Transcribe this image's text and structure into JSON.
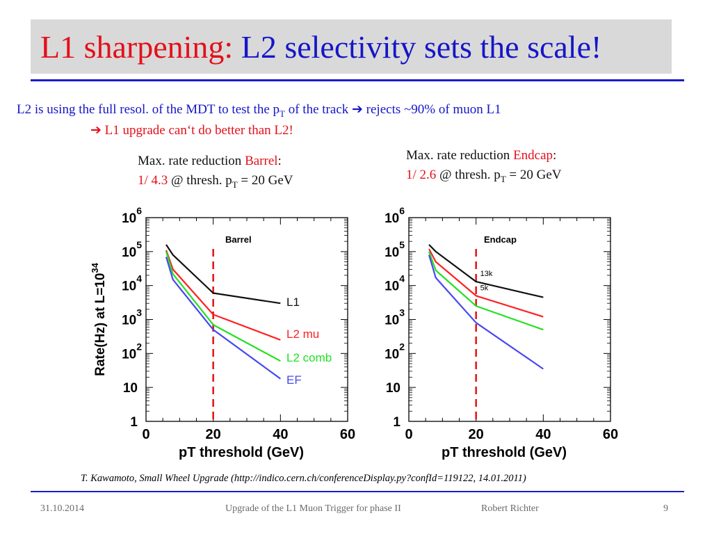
{
  "title": {
    "part1": "L1 sharpening: ",
    "part2": "L2 selectivity sets the scale!"
  },
  "body": {
    "line1_a": "L2 is using the full resol. of the MDT to test the p",
    "line1_sub": "T",
    "line1_b": " of the track ",
    "line1_arrow": "➔",
    "line1_c": " rejects ~90% of muon L1",
    "line2_arrow": "➔",
    "line2_text": " L1 upgrade can‘t do better than L2!"
  },
  "captions": {
    "barrel": {
      "prefix": "Max. rate reduction ",
      "region": "Barrel",
      "colon": ":",
      "ratio": "1/ 4.3",
      "rest_a": " @ thresh. p",
      "sub": "T",
      "rest_b": " = 20 GeV"
    },
    "endcap": {
      "prefix": "Max. rate reduction ",
      "region": "Endcap",
      "colon": ":",
      "ratio": "1/ 2.6",
      "rest_a": " @  thresh.  p",
      "sub": "T",
      "rest_b": " = 20 GeV"
    }
  },
  "chart_data": [
    {
      "type": "line",
      "panel_label": "Barrel",
      "xlabel": "pT threshold (GeV)",
      "ylabel": "Rate(Hz) at L=10^34",
      "xlim": [
        0,
        60
      ],
      "ylim": [
        1,
        1000000
      ],
      "yscale": "log",
      "x_ticks": [
        "0",
        "20",
        "40",
        "60"
      ],
      "y_ticks": [
        "1",
        "10",
        "10²",
        "10³",
        "10⁴",
        "10⁵",
        "10⁶"
      ],
      "threshold_line_x": 20,
      "series": [
        {
          "name": "L1",
          "color": "#111111",
          "x": [
            6,
            8,
            20,
            40
          ],
          "y": [
            160000,
            80000,
            6000,
            3000
          ]
        },
        {
          "name": "L2 mu",
          "color": "#ff2020",
          "x": [
            6,
            8,
            20,
            40
          ],
          "y": [
            110000,
            30000,
            1400,
            250
          ]
        },
        {
          "name": "L2 comb",
          "color": "#22e022",
          "x": [
            6,
            8,
            20,
            40
          ],
          "y": [
            100000,
            22000,
            700,
            60
          ]
        },
        {
          "name": "EF",
          "color": "#4848ee",
          "x": [
            6,
            8,
            20,
            40
          ],
          "y": [
            70000,
            15000,
            500,
            18
          ]
        }
      ]
    },
    {
      "type": "line",
      "panel_label": "Endcap",
      "xlabel": "pT threshold (GeV)",
      "ylabel": "",
      "xlim": [
        0,
        60
      ],
      "ylim": [
        1,
        1000000
      ],
      "yscale": "log",
      "x_ticks": [
        "0",
        "20",
        "40",
        "60"
      ],
      "y_ticks": [
        "1",
        "10",
        "10²",
        "10³",
        "10⁴",
        "10⁵",
        "10⁶"
      ],
      "threshold_line_x": 20,
      "annotations": [
        "13k",
        "5k"
      ],
      "series": [
        {
          "name": "L1",
          "color": "#111111",
          "x": [
            6,
            8,
            20,
            40
          ],
          "y": [
            160000,
            100000,
            13000,
            4500
          ]
        },
        {
          "name": "L2 mu",
          "color": "#ff2020",
          "x": [
            6,
            8,
            20,
            40
          ],
          "y": [
            120000,
            50000,
            5000,
            1200
          ]
        },
        {
          "name": "L2 comb",
          "color": "#22e022",
          "x": [
            6,
            8,
            20,
            40
          ],
          "y": [
            100000,
            28000,
            2500,
            500
          ]
        },
        {
          "name": "EF",
          "color": "#4848ee",
          "x": [
            6,
            8,
            20,
            40
          ],
          "y": [
            80000,
            17000,
            800,
            35
          ]
        }
      ]
    }
  ],
  "source": "T. Kawamoto, Small Wheel Upgrade (http://indico.cern.ch/conferenceDisplay.py?confId=119122, 14.01.2011)",
  "footer": {
    "date": "31.10.2014",
    "talk": "Upgrade of the L1 Muon Trigger for phase II",
    "author": "Robert Richter",
    "page": "9"
  }
}
